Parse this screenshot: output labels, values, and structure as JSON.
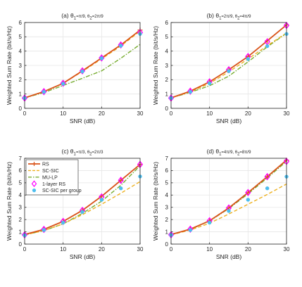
{
  "colors": {
    "rs": "#D95319",
    "sc_sic": "#EDB120",
    "mu_lp": "#77AC30",
    "one_layer_rs": "#FF00FF",
    "sc_sic_group": "#4DBEEE",
    "axis": "#262626",
    "grid": "#e6e6e6"
  },
  "legend": {
    "entries": [
      {
        "key": "rs",
        "label": "RS"
      },
      {
        "key": "sc_sic",
        "label": "SC-SIC"
      },
      {
        "key": "mu_lp",
        "label": "MU-LP"
      },
      {
        "key": "one_layer_rs",
        "label": "1-layer RS"
      },
      {
        "key": "sc_sic_group",
        "label": "SC-SIC per group"
      }
    ]
  },
  "chart_data": [
    {
      "type": "line",
      "title": "(a) θ1=π/9, θ2=2π/9",
      "title_parts": {
        "prefix": "(a) θ",
        "s1": "1",
        "mid": "=π/9, θ",
        "s2": "2",
        "suffix": "=2π/9"
      },
      "xlabel": "SNR (dB)",
      "ylabel": "Weighted Sum Rate (bit/s/Hz)",
      "xlim": [
        0,
        30
      ],
      "ylim": [
        0,
        6
      ],
      "xticks": [
        0,
        10,
        20,
        30
      ],
      "yticks": [
        0,
        1,
        2,
        3,
        4,
        5,
        6
      ],
      "grid": true,
      "x": [
        0,
        5,
        10,
        15,
        20,
        25,
        30
      ],
      "series": [
        {
          "key": "rs",
          "style": "line+plus",
          "values": [
            0.73,
            1.17,
            1.75,
            2.62,
            3.52,
            4.43,
            5.47
          ]
        },
        {
          "key": "sc_sic",
          "style": "dashed",
          "values": [
            0.73,
            1.17,
            1.75,
            2.58,
            3.46,
            4.36,
            5.4
          ]
        },
        {
          "key": "mu_lp",
          "style": "dashdot",
          "values": [
            0.73,
            1.1,
            1.6,
            2.1,
            2.62,
            3.5,
            4.47
          ]
        },
        {
          "key": "one_layer_rs",
          "style": "diamond",
          "values": [
            0.72,
            1.17,
            1.75,
            2.62,
            3.52,
            4.43,
            5.3
          ]
        },
        {
          "key": "sc_sic_group",
          "style": "circle",
          "values": [
            0.72,
            1.15,
            1.72,
            2.58,
            3.5,
            4.38,
            5.2
          ]
        }
      ]
    },
    {
      "type": "line",
      "title": "(b) θ1=2π/9, θ2=4π/9",
      "title_parts": {
        "prefix": "(b) θ",
        "s1": "1",
        "mid": "=2π/9, θ",
        "s2": "2",
        "suffix": "=4π/9"
      },
      "xlabel": "SNR (dB)",
      "ylabel": "Weighted Sum Rate (bit/s/Hz)",
      "xlim": [
        0,
        30
      ],
      "ylim": [
        0,
        6
      ],
      "xticks": [
        0,
        10,
        20,
        30
      ],
      "yticks": [
        0,
        1,
        2,
        3,
        4,
        5,
        6
      ],
      "grid": true,
      "x": [
        0,
        5,
        10,
        15,
        20,
        25,
        30
      ],
      "series": [
        {
          "key": "rs",
          "style": "line+plus",
          "values": [
            0.73,
            1.2,
            1.85,
            2.7,
            3.62,
            4.72,
            5.83
          ]
        },
        {
          "key": "sc_sic",
          "style": "dashed",
          "values": [
            0.73,
            1.15,
            1.75,
            2.55,
            3.45,
            4.38,
            5.27
          ]
        },
        {
          "key": "mu_lp",
          "style": "dashdot",
          "values": [
            0.73,
            1.12,
            1.58,
            2.25,
            3.25,
            4.3,
            5.25
          ]
        },
        {
          "key": "one_layer_rs",
          "style": "diamond",
          "values": [
            0.72,
            1.2,
            1.85,
            2.7,
            3.62,
            4.65,
            5.8
          ]
        },
        {
          "key": "sc_sic_group",
          "style": "circle",
          "values": [
            0.72,
            1.15,
            1.75,
            2.6,
            3.45,
            4.35,
            5.2
          ]
        }
      ]
    },
    {
      "type": "line",
      "title": "(c) θ1=π/3, θ2=2π/3",
      "title_parts": {
        "prefix": "(c) θ",
        "s1": "1",
        "mid": "=π/3, θ",
        "s2": "2",
        "suffix": "=2π/3"
      },
      "xlabel": "SNR (dB)",
      "ylabel": "Weighted Sum Rate (bit/s/Hz)",
      "xlim": [
        0,
        30
      ],
      "ylim": [
        0,
        7
      ],
      "xticks": [
        0,
        10,
        20,
        30
      ],
      "yticks": [
        0,
        1,
        2,
        3,
        4,
        5,
        6,
        7
      ],
      "grid": true,
      "legend_position": "top-left",
      "x": [
        0,
        5,
        10,
        15,
        20,
        25,
        30
      ],
      "series": [
        {
          "key": "rs",
          "style": "line+plus",
          "values": [
            0.78,
            1.2,
            1.85,
            2.75,
            3.9,
            5.2,
            6.5
          ]
        },
        {
          "key": "sc_sic",
          "style": "dashed",
          "values": [
            0.75,
            1.1,
            1.65,
            2.4,
            3.25,
            4.15,
            5.1
          ]
        },
        {
          "key": "mu_lp",
          "style": "dashdot",
          "values": [
            0.75,
            1.1,
            1.65,
            2.5,
            3.5,
            4.8,
            6.4
          ]
        },
        {
          "key": "one_layer_rs",
          "style": "diamond",
          "values": [
            0.75,
            1.2,
            1.85,
            2.75,
            3.85,
            5.2,
            6.5
          ]
        },
        {
          "key": "sc_sic_group",
          "style": "circle",
          "values": [
            0.72,
            1.15,
            1.75,
            2.62,
            3.62,
            4.55,
            5.52
          ]
        }
      ]
    },
    {
      "type": "line",
      "title": "(d) θ1=4π/9, θ2=8π/9",
      "title_parts": {
        "prefix": "(d) θ",
        "s1": "1",
        "mid": "=4π/9, θ",
        "s2": "2",
        "suffix": "=8π/9"
      },
      "xlabel": "SNR (dB)",
      "ylabel": "Weighted Sum Rate (bit/s/Hz)",
      "xlim": [
        0,
        30
      ],
      "ylim": [
        0,
        7
      ],
      "xticks": [
        0,
        10,
        20,
        30
      ],
      "yticks": [
        0,
        1,
        2,
        3,
        4,
        5,
        6,
        7
      ],
      "grid": true,
      "x": [
        0,
        5,
        10,
        15,
        20,
        25,
        30
      ],
      "series": [
        {
          "key": "rs",
          "style": "line+plus",
          "values": [
            0.78,
            1.22,
            1.9,
            2.95,
            4.2,
            5.5,
            6.85
          ]
        },
        {
          "key": "sc_sic",
          "style": "dashed",
          "values": [
            0.75,
            1.15,
            1.7,
            2.45,
            3.25,
            4.05,
            4.9
          ]
        },
        {
          "key": "mu_lp",
          "style": "dashdot",
          "values": [
            0.78,
            1.2,
            1.88,
            2.9,
            4.1,
            5.4,
            6.75
          ]
        },
        {
          "key": "one_layer_rs",
          "style": "diamond",
          "values": [
            0.76,
            1.22,
            1.9,
            2.95,
            4.2,
            5.5,
            6.75
          ]
        },
        {
          "key": "sc_sic_group",
          "style": "circle",
          "values": [
            0.75,
            1.15,
            1.75,
            2.7,
            3.62,
            4.55,
            5.5
          ]
        }
      ]
    }
  ]
}
